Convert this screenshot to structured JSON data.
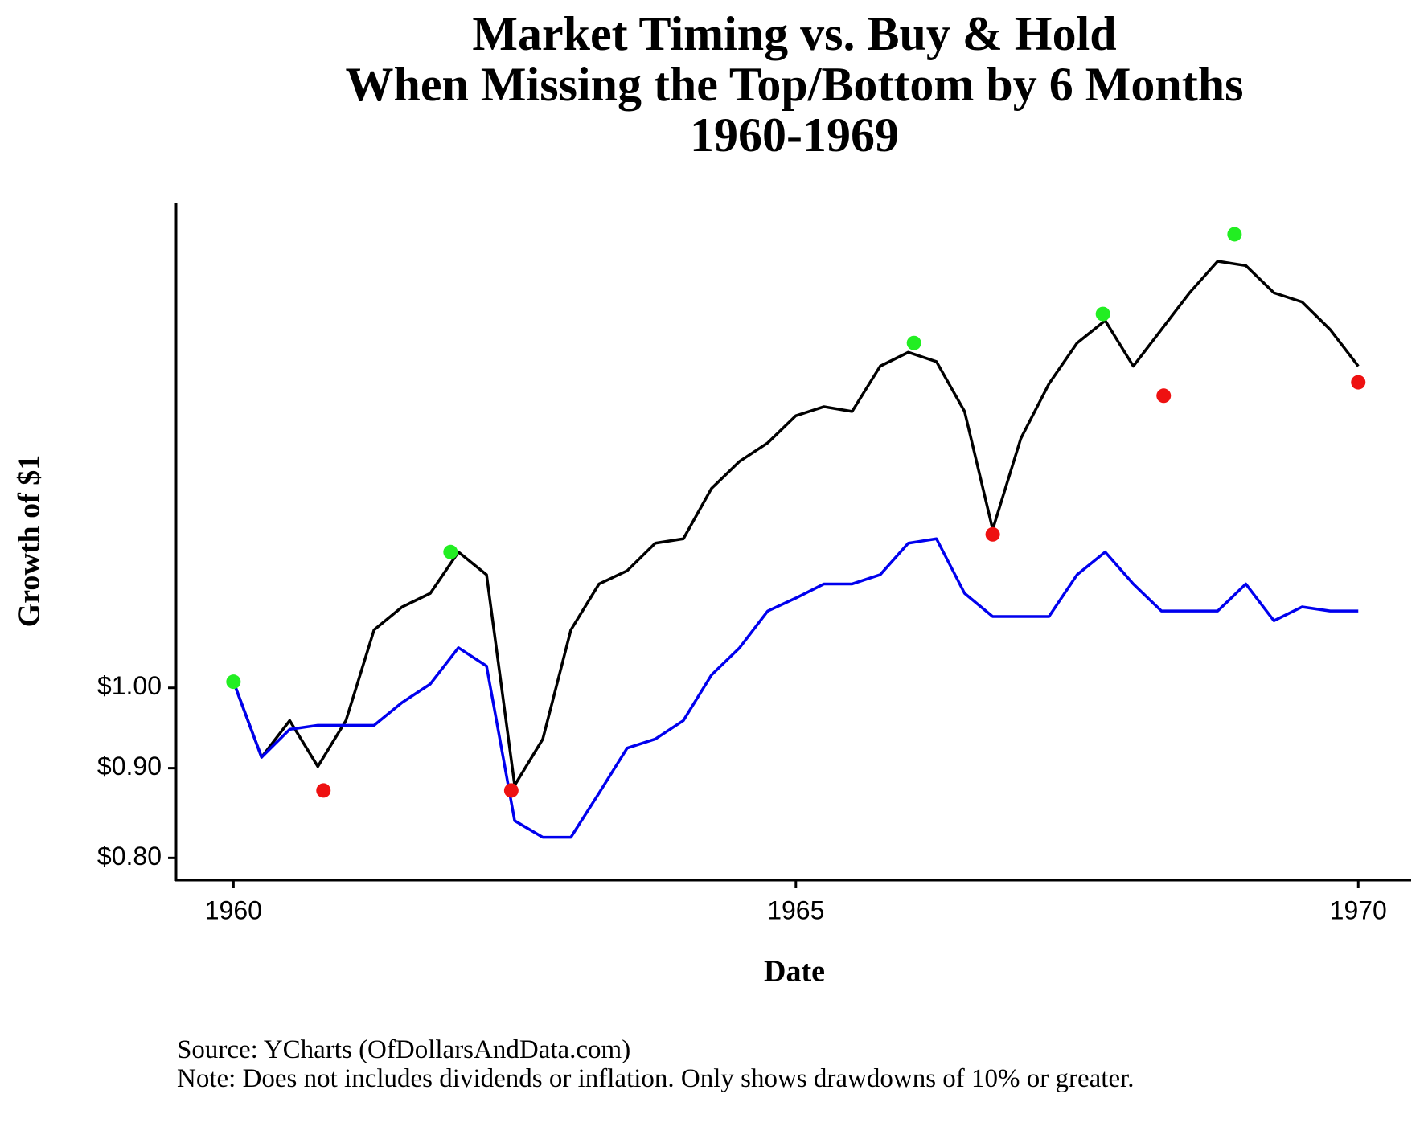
{
  "chart_data": {
    "type": "line",
    "title": [
      "Market Timing vs. Buy & Hold",
      "When Missing the Top/Bottom by 6 Months",
      "1960-1969"
    ],
    "xlabel": "Date",
    "ylabel": "Growth of $1",
    "source": "Source: YCharts (OfDollarsAndData.com)",
    "note": "Note: Does not includes dividends or inflation. Only shows drawdowns of 10% or greater.",
    "log_y": true,
    "grid": false,
    "xlim": [
      1959.49,
      1970.47
    ],
    "xticks": [
      1960,
      1965,
      1970
    ],
    "ylim": [
      0.777,
      1.89
    ],
    "yticks": [
      {
        "value": 0.8,
        "label": "$0.80"
      },
      {
        "value": 0.9,
        "label": "$0.90"
      },
      {
        "value": 1.0,
        "label": "$1.00"
      }
    ],
    "x": [
      1960,
      1960.25,
      1960.5,
      1960.75,
      1961,
      1961.25,
      1961.5,
      1961.75,
      1962,
      1962.25,
      1962.5,
      1962.75,
      1963,
      1963.25,
      1963.5,
      1963.75,
      1964,
      1964.25,
      1964.5,
      1964.75,
      1965,
      1965.25,
      1965.5,
      1965.75,
      1966,
      1966.25,
      1966.5,
      1966.75,
      1967,
      1967.25,
      1967.5,
      1967.75,
      1968,
      1968.25,
      1968.5,
      1968.75,
      1969,
      1969.25,
      1969.5,
      1969.75,
      1970
    ],
    "series": [
      {
        "color": "#000000",
        "values": [
          1.008,
          0.913,
          0.958,
          0.902,
          0.958,
          1.079,
          1.112,
          1.132,
          1.195,
          1.16,
          0.88,
          0.935,
          1.079,
          1.146,
          1.166,
          1.209,
          1.216,
          1.299,
          1.346,
          1.379,
          1.429,
          1.446,
          1.437,
          1.525,
          1.553,
          1.534,
          1.437,
          1.231,
          1.387,
          1.49,
          1.572,
          1.619,
          1.525,
          1.6,
          1.679,
          1.75,
          1.74,
          1.679,
          1.659,
          1.6,
          1.525
        ]
      },
      {
        "color": "#0000ee",
        "values": [
          1.008,
          0.913,
          0.947,
          0.952,
          0.952,
          0.952,
          0.981,
          1.005,
          1.054,
          1.029,
          0.84,
          0.822,
          0.822,
          0.871,
          0.924,
          0.935,
          0.958,
          1.017,
          1.054,
          1.106,
          1.125,
          1.146,
          1.146,
          1.16,
          1.209,
          1.216,
          1.132,
          1.098,
          1.098,
          1.098,
          1.16,
          1.195,
          1.146,
          1.106,
          1.106,
          1.106,
          1.146,
          1.092,
          1.112,
          1.106,
          1.106
        ]
      }
    ],
    "peaks": {
      "color": "#22ee22",
      "x": [
        1960.0,
        1961.93,
        1966.05,
        1967.73,
        1968.9
      ],
      "values": [
        1.008,
        1.195,
        1.572,
        1.633,
        1.813
      ]
    },
    "troughs": {
      "color": "#ee1111",
      "x": [
        1960.8,
        1962.47,
        1966.75,
        1968.27,
        1970.0
      ],
      "values": [
        0.874,
        0.874,
        1.223,
        1.467,
        1.493
      ]
    }
  }
}
